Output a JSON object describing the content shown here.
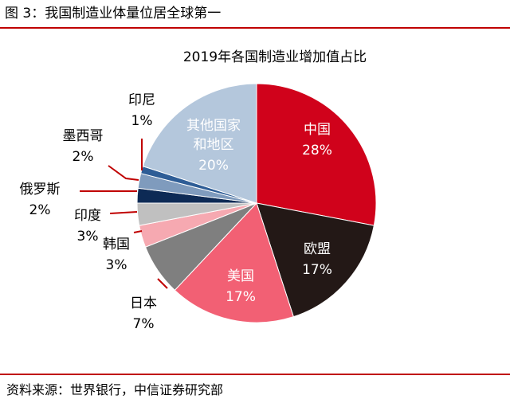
{
  "figure": {
    "title": "图 3：我国制造业体量位居全球第一",
    "source": "资料来源：世界银行，中信证券研究部"
  },
  "chart_data": {
    "type": "pie",
    "title": "2019年各国制造业增加值占比",
    "slices": [
      {
        "name": "中国",
        "value": 28,
        "label": "28%",
        "color": "#d0021b",
        "label_color": "#ffffff"
      },
      {
        "name": "欧盟",
        "value": 17,
        "label": "17%",
        "color": "#231816",
        "label_color": "#ffffff"
      },
      {
        "name": "美国",
        "value": 17,
        "label": "17%",
        "color": "#f26074",
        "label_color": "#ffffff"
      },
      {
        "name": "日本",
        "value": 7,
        "label": "7%",
        "color": "#7f7f7f",
        "label_color": "#000000"
      },
      {
        "name": "韩国",
        "value": 3,
        "label": "3%",
        "color": "#f6a9b1",
        "label_color": "#000000"
      },
      {
        "name": "印度",
        "value": 3,
        "label": "3%",
        "color": "#c0c0c0",
        "label_color": "#000000"
      },
      {
        "name": "俄罗斯",
        "value": 2,
        "label": "2%",
        "color": "#0d2a55",
        "label_color": "#000000"
      },
      {
        "name": "墨西哥",
        "value": 2,
        "label": "2%",
        "color": "#7f9bbd",
        "label_color": "#000000"
      },
      {
        "name": "印尼",
        "value": 1,
        "label": "1%",
        "color": "#2e5d96",
        "label_color": "#000000"
      },
      {
        "name": "其他国家和地区",
        "value": 20,
        "label": "20%",
        "color": "#b4c7dc",
        "label_color": "#ffffff"
      }
    ],
    "colors": {
      "leader_line": "#c00000"
    }
  }
}
